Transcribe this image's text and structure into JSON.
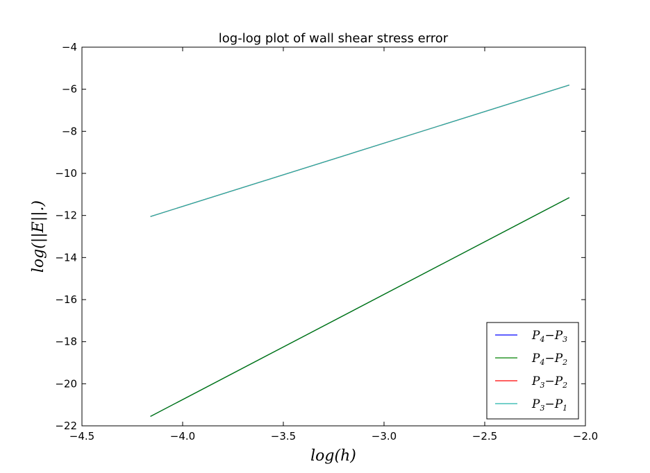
{
  "chart_data": {
    "type": "line",
    "title": "log-log plot of wall shear stress error",
    "xlabel": "log(h)",
    "ylabel": "log(||E||.)",
    "xlim": [
      -4.5,
      -2.0
    ],
    "ylim": [
      -22,
      -4
    ],
    "xticks": [
      -4.5,
      -4.0,
      -3.5,
      -3.0,
      -2.5,
      -2.0
    ],
    "xtick_labels": [
      "−4.5",
      "−4.0",
      "−3.5",
      "−3.0",
      "−2.5",
      "−2.0"
    ],
    "yticks": [
      -22,
      -20,
      -18,
      -16,
      -14,
      -12,
      -10,
      -8,
      -6,
      -4
    ],
    "ytick_labels": [
      "−22",
      "−20",
      "−18",
      "−16",
      "−14",
      "−12",
      "−10",
      "−8",
      "−6",
      "−4"
    ],
    "grid": false,
    "legend_position": "lower-right",
    "series": [
      {
        "name": "P4−P3",
        "name_base1": "P",
        "name_sub1": "4",
        "name_op": "−",
        "name_base2": "P",
        "name_sub2": "3",
        "color": "#0000ff",
        "x": [
          -4.16,
          -2.08
        ],
        "y": [
          -21.55,
          -11.15
        ]
      },
      {
        "name": "P4−P2",
        "name_base1": "P",
        "name_sub1": "4",
        "name_op": "−",
        "name_base2": "P",
        "name_sub2": "2",
        "color": "#008000",
        "x": [
          -4.16,
          -2.08
        ],
        "y": [
          -21.55,
          -11.15
        ]
      },
      {
        "name": "P3−P2",
        "name_base1": "P",
        "name_sub1": "3",
        "name_op": "−",
        "name_base2": "P",
        "name_sub2": "2",
        "color": "#ff0000",
        "x": [
          -4.16,
          -2.08
        ],
        "y": [
          -12.05,
          -5.8
        ]
      },
      {
        "name": "P3−P1",
        "name_base1": "P",
        "name_sub1": "3",
        "name_op": "−",
        "name_base2": "P",
        "name_sub2": "1",
        "color": "#20b2aa",
        "x": [
          -4.16,
          -2.08
        ],
        "y": [
          -12.05,
          -5.8
        ]
      }
    ]
  }
}
